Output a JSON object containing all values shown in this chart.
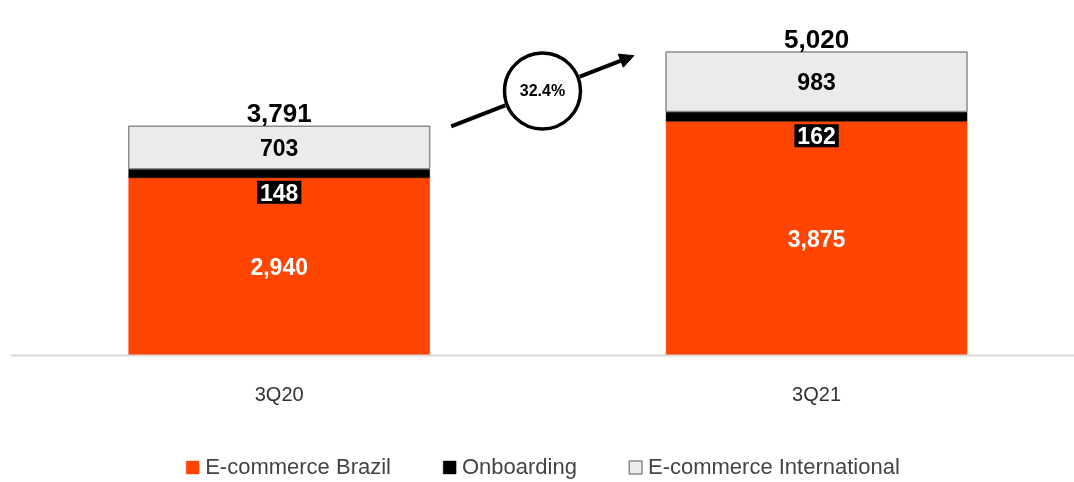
{
  "chart_data": {
    "type": "bar",
    "stacked": true,
    "categories": [
      "3Q20",
      "3Q21"
    ],
    "series": [
      {
        "name": "E-commerce Brazil",
        "color": "#ff4500",
        "values": [
          2940,
          3875
        ],
        "value_labels": [
          "2,940",
          "3,875"
        ]
      },
      {
        "name": "Onboarding",
        "color": "#000000",
        "values": [
          148,
          162
        ],
        "value_labels": [
          "148",
          "162"
        ]
      },
      {
        "name": "E-commerce International",
        "color": "#ebebeb",
        "values": [
          703,
          983
        ],
        "value_labels": [
          "703",
          "983"
        ]
      }
    ],
    "totals": [
      "3,791",
      "5,020"
    ],
    "annotations": [
      "32.4%"
    ],
    "legend": "bottom",
    "grid": false
  }
}
